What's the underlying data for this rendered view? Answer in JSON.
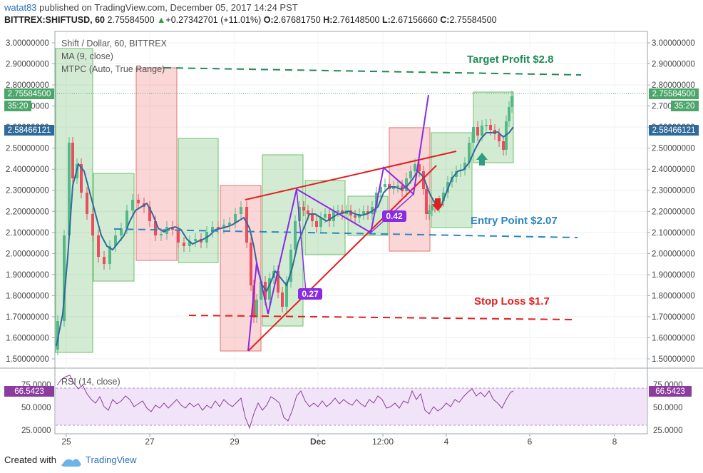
{
  "header": {
    "author": "watat83",
    "published_text": "published on TradingView.com, December 05, 2017 14:24 PST",
    "symbol": "BITTREX:SHIFTUSD, 60",
    "last": "2.75584500",
    "change": "+0.27342701 (+11.01%)",
    "o_label": "O:",
    "o": "2.67681750",
    "h_label": "H:",
    "h": "2.76148500",
    "l_label": "L:",
    "l": "2.67156660",
    "c_label": "C:",
    "c": "2.75584500"
  },
  "legend": {
    "title": "Shift / Dollar, 60, BITTREX",
    "ma": "MA (9, close)",
    "mtpc": "MTPC (Auto, True Range)"
  },
  "price_axis": {
    "ticks": [
      "3.00000000",
      "2.90000000",
      "2.80000000",
      "2.70000000",
      "2.60000000",
      "2.50000000",
      "2.40000000",
      "2.30000000",
      "2.20000000",
      "2.10000000",
      "2.00000000",
      "1.90000000",
      "1.80000000",
      "1.70000000",
      "1.60000000",
      "1.50000000"
    ],
    "price_badge": "2.75584500",
    "countdown_badge": "35:20",
    "ma_badge": "2.58466121",
    "badge_colors": {
      "price": "#4ca66a",
      "ma": "#2f6a9a"
    }
  },
  "time_axis": {
    "labels": [
      "25",
      "27",
      "29",
      "Dec",
      "12:00",
      "4",
      "6",
      "8"
    ]
  },
  "annotations": {
    "target": "Target Profit $2.8",
    "entry": "Entry Point $2.07",
    "stop": "Stop Loss $1.7",
    "ratio1": "0.27",
    "ratio2": "0.42",
    "colors": {
      "target": "#1f8a55",
      "entry": "#2f86c0",
      "stop": "#e02020",
      "pattern": "#8a2be2"
    }
  },
  "rsi": {
    "title": "RSI (14, close)",
    "ticks": [
      "75.0000",
      "50.0000",
      "25.0000"
    ],
    "badge": "66.5423",
    "color": "#8c3c9e"
  },
  "footer": {
    "created_with": "Created with",
    "brand": "TradingView"
  }
}
